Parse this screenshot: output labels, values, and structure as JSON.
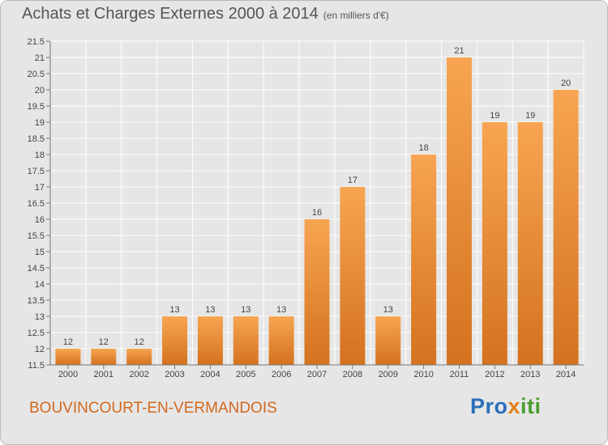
{
  "title": "Achats et Charges Externes 2000 à 2014",
  "unit_label": "(en milliers d'€)",
  "commune": "BOUVINCOURT-EN-VERMANDOIS",
  "logo": {
    "part1": "Pro",
    "part2": "x",
    "part3": "iti"
  },
  "colors": {
    "bar_light": "#f7a552",
    "bar_dark": "#d4721f",
    "logo_blue": "#2a6fba",
    "logo_orange": "#e47f1b",
    "logo_green": "#4a9e2e"
  },
  "chart_data": {
    "type": "bar",
    "categories": [
      "2000",
      "2001",
      "2002",
      "2003",
      "2004",
      "2005",
      "2006",
      "2007",
      "2008",
      "2009",
      "2010",
      "2011",
      "2012",
      "2013",
      "2014"
    ],
    "values": [
      12,
      12,
      12,
      13,
      13,
      13,
      13,
      16,
      17,
      13,
      18,
      21,
      19,
      19,
      20
    ],
    "data_labels": [
      "12",
      "12",
      "12",
      "13",
      "13",
      "13",
      "13",
      "16",
      "17",
      "13",
      "18",
      "21",
      "19",
      "19",
      "20"
    ],
    "y_ticks": [
      "11.5",
      "12",
      "12.5",
      "13",
      "13.5",
      "14",
      "14.5",
      "15",
      "15.5",
      "16",
      "16.5",
      "17",
      "17.5",
      "18",
      "18.5",
      "19",
      "19.5",
      "20",
      "20.5",
      "21",
      "21.5"
    ],
    "ylim": [
      11.5,
      21.5
    ],
    "grid": true
  }
}
